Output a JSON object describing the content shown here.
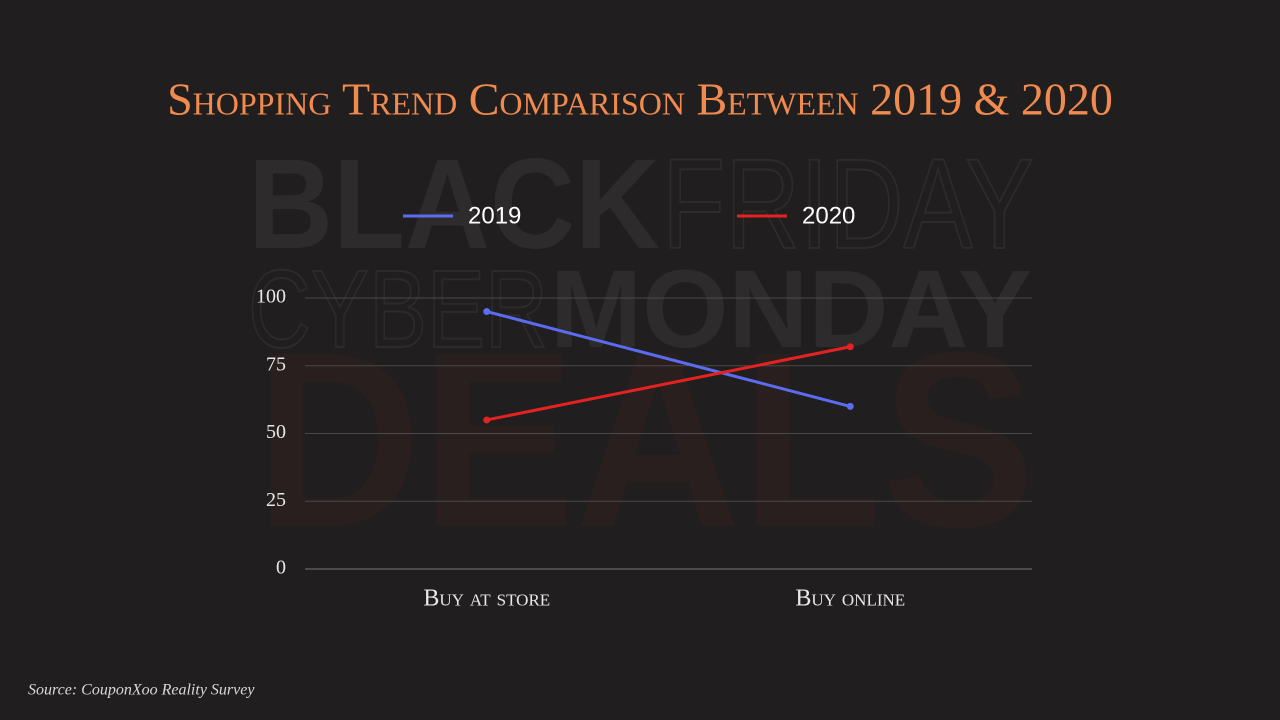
{
  "chart_data": {
    "type": "line",
    "title": "Shopping Trend Comparison Between 2019 & 2020",
    "categories": [
      "Buy at store",
      "Buy online"
    ],
    "series": [
      {
        "name": "2019",
        "color": "#5b6cf0",
        "values": [
          95,
          60
        ]
      },
      {
        "name": "2020",
        "color": "#e52222",
        "values": [
          55,
          82
        ]
      }
    ],
    "ylim": [
      0,
      100
    ],
    "yticks": [
      0,
      25,
      50,
      75,
      100
    ],
    "grid": true,
    "legend": "top",
    "source": "Source: CouponXoo Reality Survey"
  },
  "watermark": [
    "BLACK",
    "FRIDAY",
    "CYBER",
    "MONDAY",
    "DEALS"
  ]
}
